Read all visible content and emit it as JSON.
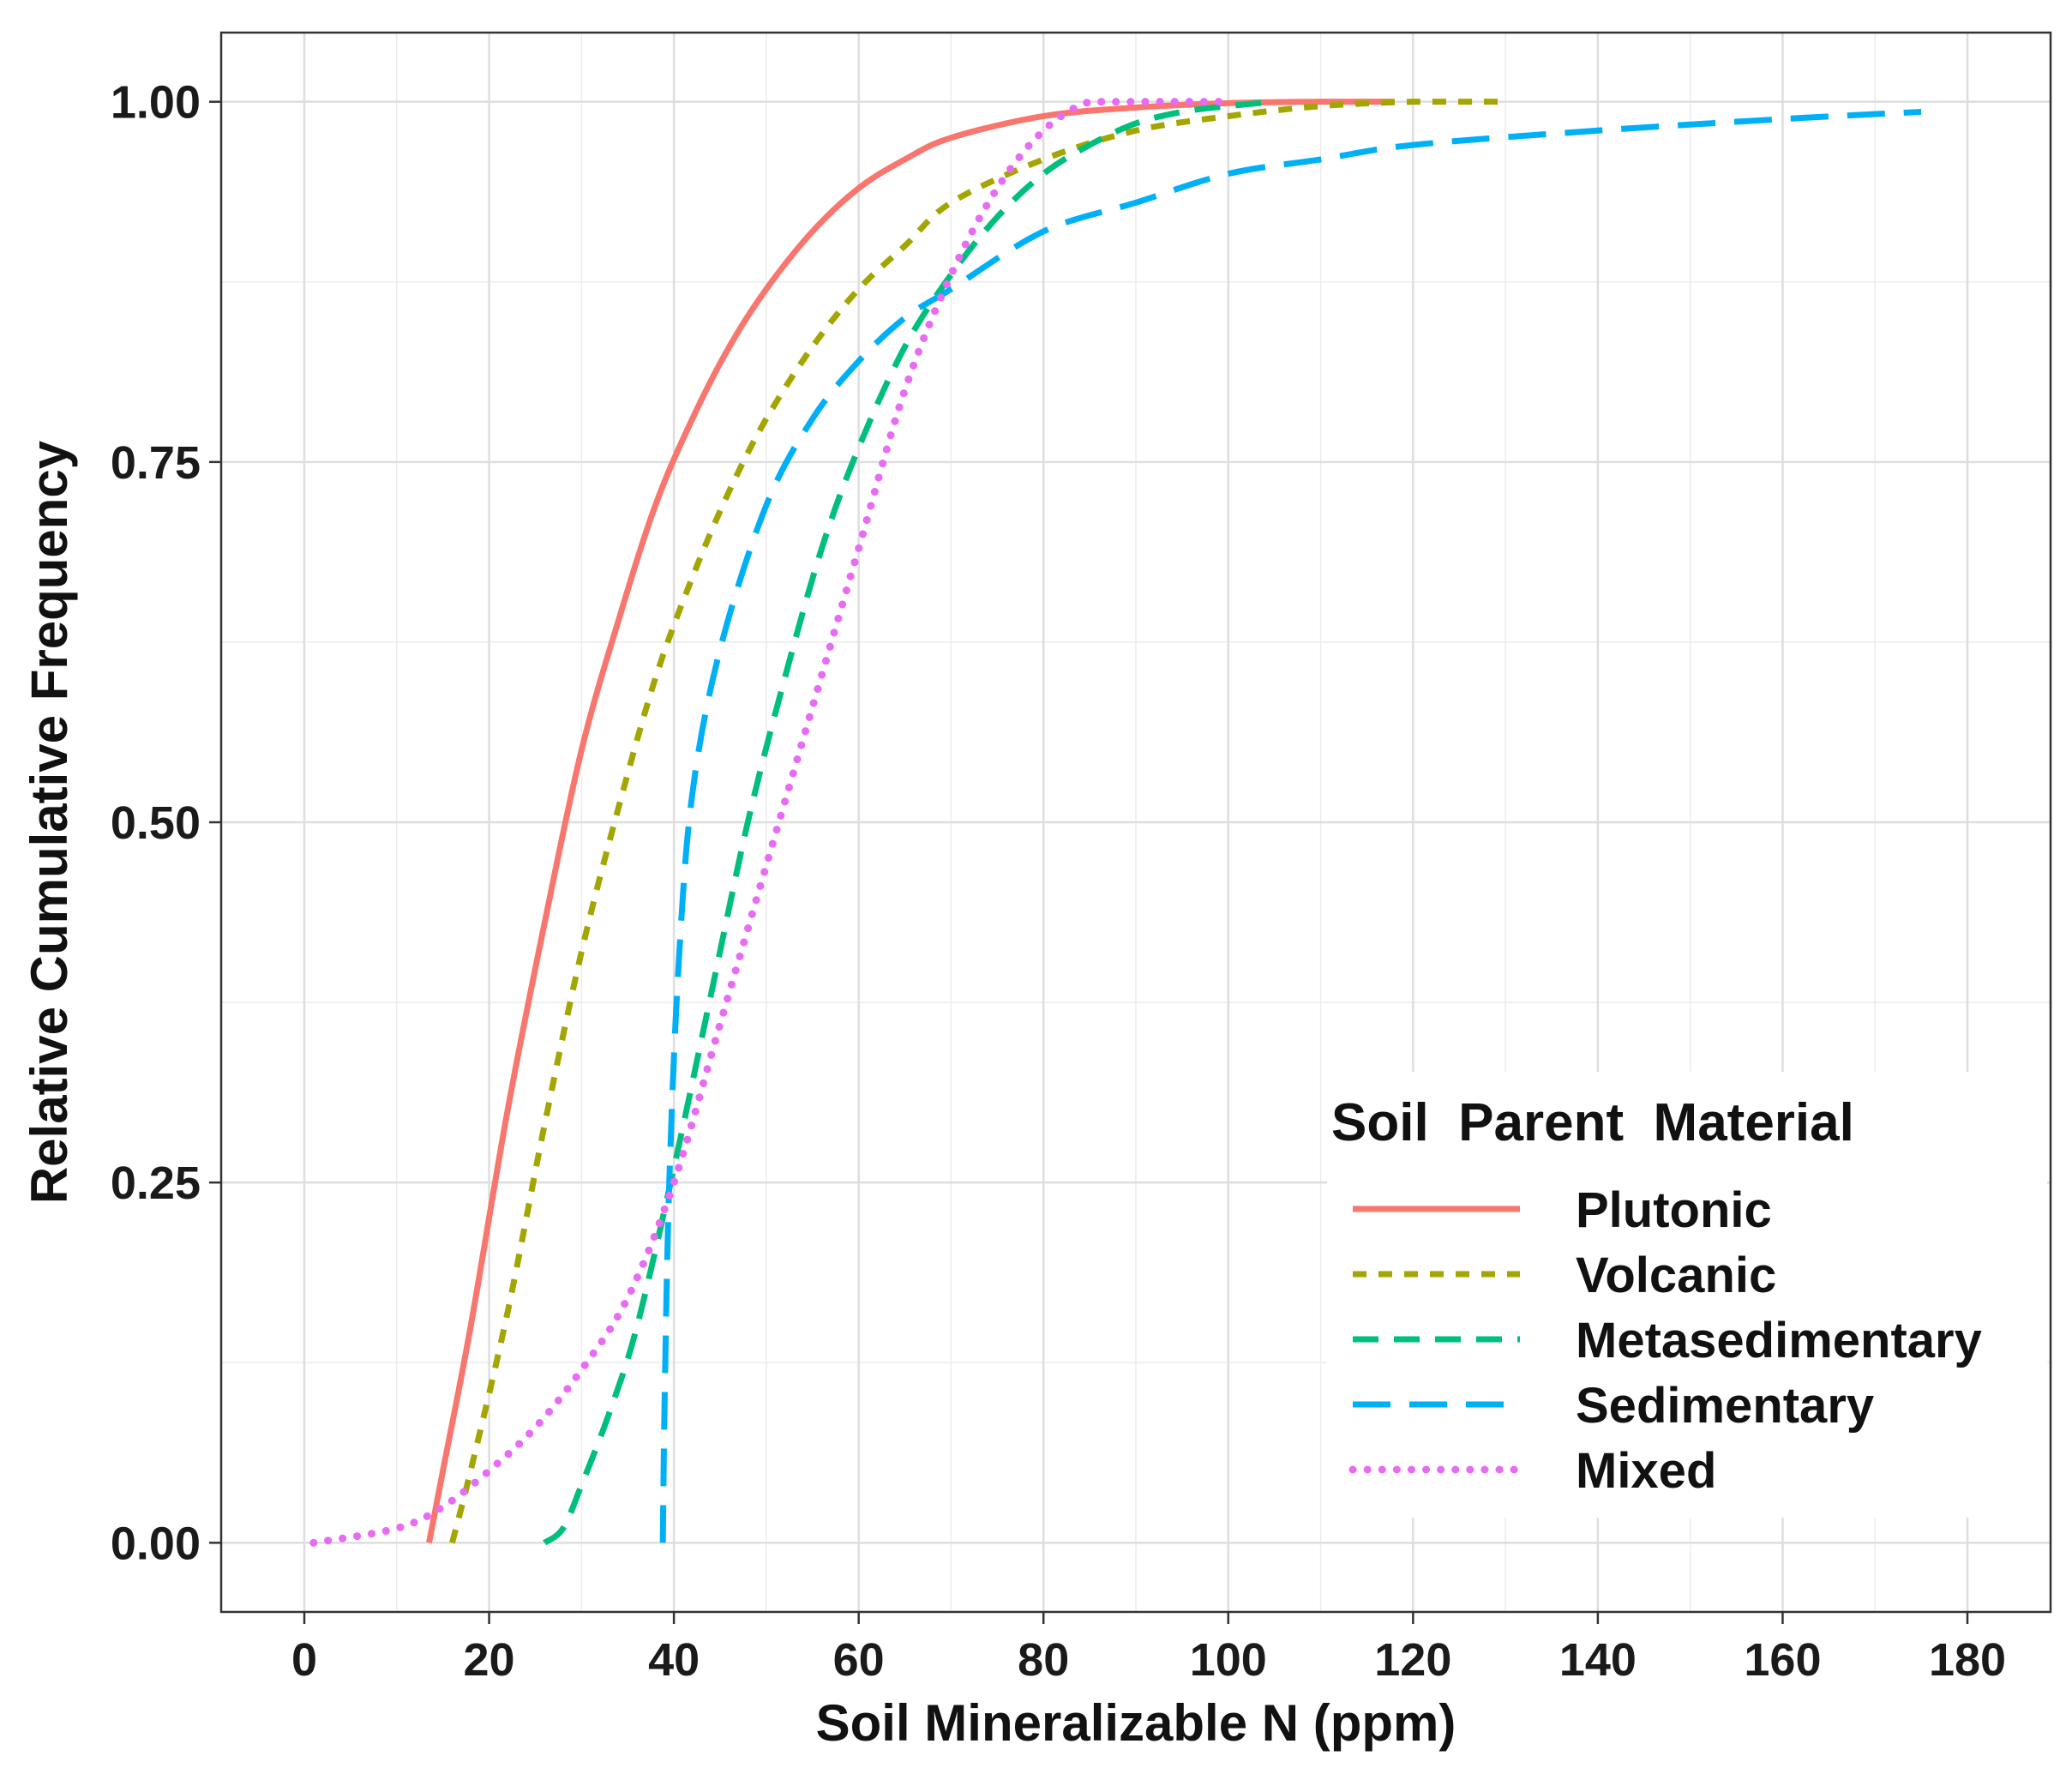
{
  "chart_data": {
    "type": "line",
    "title": "",
    "xlabel": "Soil Mineralizable N (ppm)",
    "ylabel": "Relative Cumulative Frequency",
    "xlim": [
      -9,
      189
    ],
    "ylim": [
      -0.048,
      1.048
    ],
    "x_ticks": [
      0,
      20,
      40,
      60,
      80,
      100,
      120,
      140,
      160,
      180
    ],
    "x_tick_labels": [
      "0",
      "20",
      "40",
      "60",
      "80",
      "100",
      "120",
      "140",
      "160",
      "180"
    ],
    "y_ticks": [
      0,
      0.25,
      0.5,
      0.75,
      1.0
    ],
    "y_tick_labels": [
      "0.00",
      "0.25",
      "0.50",
      "0.75",
      "1.00"
    ],
    "grid": true,
    "legend": {
      "title": "Soil  Parent  Material",
      "position": "bottom-right"
    },
    "series": [
      {
        "name": "Plutonic",
        "color": "#F8766D",
        "dash": "solid",
        "points": [
          [
            13.5,
            0
          ],
          [
            15,
            0.05
          ],
          [
            18,
            0.15
          ],
          [
            22,
            0.3
          ],
          [
            26,
            0.43
          ],
          [
            30,
            0.55
          ],
          [
            34,
            0.64
          ],
          [
            38,
            0.72
          ],
          [
            42,
            0.78
          ],
          [
            46,
            0.83
          ],
          [
            50,
            0.87
          ],
          [
            55,
            0.91
          ],
          [
            60,
            0.94
          ],
          [
            65,
            0.96
          ],
          [
            70,
            0.975
          ],
          [
            80,
            0.99
          ],
          [
            90,
            0.996
          ],
          [
            100,
            0.999
          ],
          [
            110,
            1.0
          ],
          [
            118,
            1.0
          ]
        ]
      },
      {
        "name": "Volcanic",
        "color": "#A3A500",
        "dash": "short-dash",
        "points": [
          [
            16,
            0
          ],
          [
            18,
            0.05
          ],
          [
            22,
            0.16
          ],
          [
            26,
            0.29
          ],
          [
            30,
            0.41
          ],
          [
            34,
            0.51
          ],
          [
            38,
            0.6
          ],
          [
            42,
            0.67
          ],
          [
            46,
            0.73
          ],
          [
            50,
            0.78
          ],
          [
            55,
            0.83
          ],
          [
            60,
            0.87
          ],
          [
            65,
            0.9
          ],
          [
            70,
            0.93
          ],
          [
            80,
            0.96
          ],
          [
            90,
            0.98
          ],
          [
            100,
            0.99
          ],
          [
            110,
            0.997
          ],
          [
            120,
            1.0
          ],
          [
            130,
            1.0
          ]
        ]
      },
      {
        "name": "Metasedimentary",
        "color": "#00BF7D",
        "dash": "long-dash",
        "points": [
          [
            26,
            0
          ],
          [
            28,
            0.01
          ],
          [
            30,
            0.04
          ],
          [
            33,
            0.09
          ],
          [
            36,
            0.15
          ],
          [
            40,
            0.26
          ],
          [
            44,
            0.38
          ],
          [
            48,
            0.5
          ],
          [
            52,
            0.6
          ],
          [
            56,
            0.69
          ],
          [
            60,
            0.76
          ],
          [
            65,
            0.83
          ],
          [
            70,
            0.88
          ],
          [
            75,
            0.92
          ],
          [
            80,
            0.95
          ],
          [
            85,
            0.97
          ],
          [
            90,
            0.985
          ],
          [
            95,
            0.993
          ],
          [
            100,
            0.997
          ],
          [
            105,
            1.0
          ]
        ]
      },
      {
        "name": "Sedimentary",
        "color": "#00B0F6",
        "dash": "longer-dash",
        "points": [
          [
            38.8,
            0
          ],
          [
            39,
            0.1
          ],
          [
            39.5,
            0.25
          ],
          [
            40.5,
            0.4
          ],
          [
            42,
            0.52
          ],
          [
            45,
            0.62
          ],
          [
            50,
            0.72
          ],
          [
            55,
            0.78
          ],
          [
            60,
            0.82
          ],
          [
            65,
            0.85
          ],
          [
            70,
            0.87
          ],
          [
            80,
            0.91
          ],
          [
            90,
            0.93
          ],
          [
            100,
            0.95
          ],
          [
            110,
            0.96
          ],
          [
            120,
            0.97
          ],
          [
            140,
            0.98
          ],
          [
            160,
            0.988
          ],
          [
            175,
            0.993
          ]
        ]
      },
      {
        "name": "Mixed",
        "color": "#E76BF3",
        "dash": "dotted",
        "points": [
          [
            1,
            0
          ],
          [
            10,
            0.01
          ],
          [
            15,
            0.025
          ],
          [
            20,
            0.05
          ],
          [
            25,
            0.08
          ],
          [
            30,
            0.12
          ],
          [
            35,
            0.17
          ],
          [
            40,
            0.25
          ],
          [
            45,
            0.36
          ],
          [
            50,
            0.47
          ],
          [
            55,
            0.58
          ],
          [
            60,
            0.69
          ],
          [
            65,
            0.8
          ],
          [
            70,
            0.88
          ],
          [
            75,
            0.94
          ],
          [
            80,
            0.98
          ],
          [
            85,
            1.0
          ],
          [
            90,
            1.0
          ],
          [
            100,
            1.0
          ]
        ]
      }
    ]
  }
}
